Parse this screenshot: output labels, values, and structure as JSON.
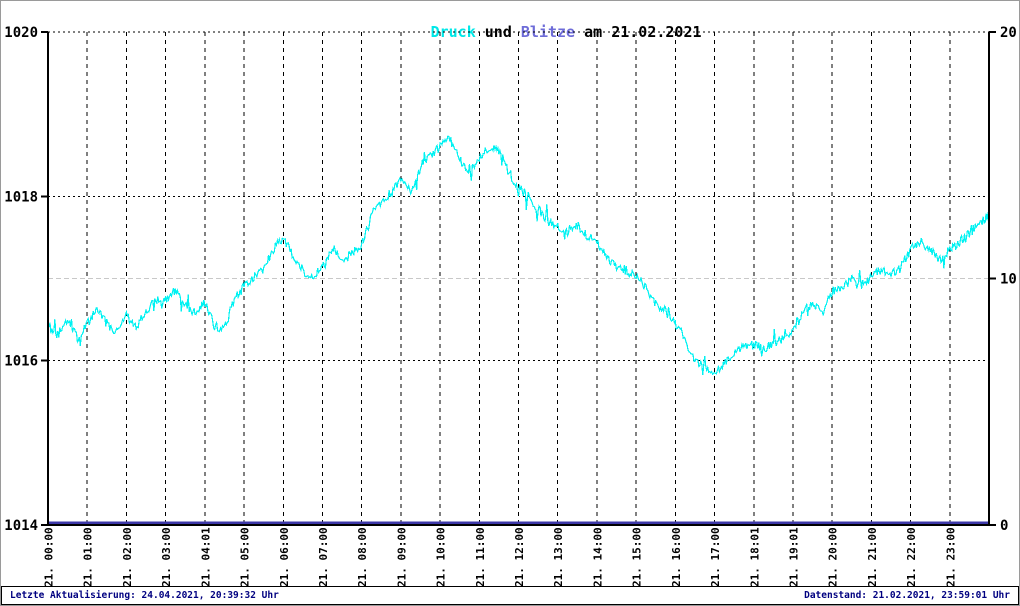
{
  "title": {
    "druck": "Druck",
    "und": " und ",
    "blitze": "Blitze",
    "rest": " am 21.02.2021"
  },
  "colors": {
    "pressure_line": "#00F2F2",
    "title_druck": "#00E8E8",
    "title_blitze": "#6E6CD8",
    "lightning_line": "#3D38A8",
    "footer_text": "#000080",
    "grid_major": "#000000",
    "grid_minor": "#C8C8C8",
    "axis": "#000000"
  },
  "footer": {
    "left": "Letzte Aktualisierung: 24.04.2021, 20:39:32 Uhr",
    "right": "Datenstand: 21.02.2021, 23:59:01 Uhr"
  },
  "chart_data": {
    "type": "line",
    "title": "Druck und Blitze am 21.02.2021",
    "legend": "none",
    "x_axis": {
      "unit": "time",
      "range_minutes": [
        0,
        1440
      ],
      "tick_labels": [
        "21. 00:00",
        "21. 01:00",
        "21. 02:00",
        "21. 03:00",
        "21. 04:01",
        "21. 05:00",
        "21. 06:00",
        "21. 07:00",
        "21. 08:00",
        "21. 09:00",
        "21. 10:00",
        "21. 11:00",
        "21. 12:00",
        "21. 13:00",
        "21. 14:00",
        "21. 15:00",
        "21. 16:00",
        "21. 17:00",
        "21. 18:01",
        "21. 19:01",
        "21. 20:00",
        "21. 21:00",
        "21. 22:00",
        "21. 23:00"
      ],
      "vertical_gridlines": "dashed black at every hour"
    },
    "y_left": {
      "range": [
        1014,
        1020
      ],
      "tick_values": [
        1020,
        1018,
        1016,
        1014
      ],
      "dotted_gridlines_at": [
        1016,
        1018,
        1020
      ]
    },
    "y_right": {
      "range": [
        0,
        20
      ],
      "tick_values": [
        20,
        10,
        0
      ],
      "gray_dashed_gridline_at": 10
    },
    "series": [
      {
        "name": "Druck",
        "axis": "left",
        "sample_interval_min": 15,
        "values": [
          1016.45,
          1016.32,
          1016.5,
          1016.28,
          1016.45,
          1016.62,
          1016.45,
          1016.35,
          1016.55,
          1016.4,
          1016.62,
          1016.72,
          1016.75,
          1016.85,
          1016.68,
          1016.58,
          1016.7,
          1016.42,
          1016.38,
          1016.75,
          1016.9,
          1017.0,
          1017.12,
          1017.35,
          1017.5,
          1017.28,
          1017.1,
          1017.0,
          1017.15,
          1017.38,
          1017.22,
          1017.3,
          1017.42,
          1017.78,
          1017.92,
          1018.05,
          1018.18,
          1018.05,
          1018.32,
          1018.5,
          1018.6,
          1018.7,
          1018.45,
          1018.3,
          1018.45,
          1018.6,
          1018.55,
          1018.3,
          1018.1,
          1018.0,
          1017.85,
          1017.7,
          1017.62,
          1017.55,
          1017.65,
          1017.52,
          1017.45,
          1017.25,
          1017.15,
          1017.1,
          1017.05,
          1016.88,
          1016.7,
          1016.6,
          1016.45,
          1016.25,
          1016.0,
          1015.9,
          1015.88,
          1015.95,
          1016.1,
          1016.18,
          1016.2,
          1016.15,
          1016.2,
          1016.28,
          1016.38,
          1016.6,
          1016.7,
          1016.62,
          1016.85,
          1016.88,
          1017.0,
          1016.92,
          1017.02,
          1017.12,
          1017.05,
          1017.15,
          1017.35,
          1017.45,
          1017.35,
          1017.22,
          1017.35,
          1017.45,
          1017.55,
          1017.65,
          1017.78
        ],
        "render_noise": {
          "amplitude_hpa": 0.055,
          "spike_amplitude_hpa": 0.14,
          "spike_probability": 0.07,
          "substeps_per_sample": 10,
          "seed": 123456789
        }
      },
      {
        "name": "Blitze",
        "axis": "right",
        "constant_value": 0
      }
    ]
  }
}
